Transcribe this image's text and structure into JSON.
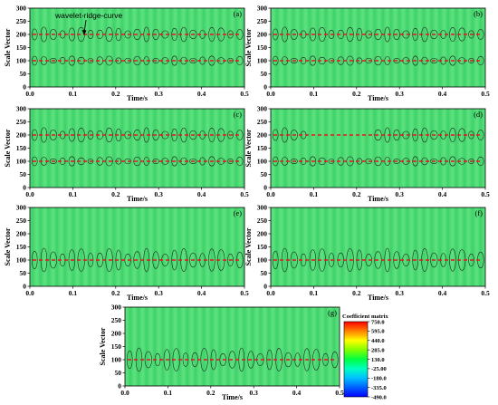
{
  "chart_data": {
    "type": "heatmap",
    "xlabel": "Time/s",
    "ylabel": "Scale Vector",
    "xlim": [
      0.0,
      0.5
    ],
    "ylim": [
      0,
      300
    ],
    "x_ticks": [
      "0.0",
      "0.1",
      "0.2",
      "0.3",
      "0.4",
      "0.5"
    ],
    "y_ticks": [
      "0",
      "50",
      "100",
      "150",
      "200",
      "250",
      "300"
    ],
    "annotation": "wavelet-ridge-curve",
    "colorbar": {
      "title": "Coefficient matrix",
      "ticks": [
        "750.0",
        "595.0",
        "440.0",
        "285.0",
        "130.0",
        "-25.00",
        "-180.0",
        "-335.0",
        "-490.0"
      ],
      "colors": [
        "#ff0000",
        "#ff8000",
        "#ffff00",
        "#80ff00",
        "#00ff40",
        "#00ffc0",
        "#00c0ff",
        "#0060ff",
        "#0000ff"
      ]
    },
    "panels": [
      {
        "label": "(a)",
        "ridges": [
          200,
          100
        ]
      },
      {
        "label": "(b)",
        "ridges": [
          200,
          100
        ]
      },
      {
        "label": "(c)",
        "ridges": [
          200,
          100
        ]
      },
      {
        "label": "(d)",
        "ridges": [
          200,
          100
        ]
      },
      {
        "label": "(e)",
        "ridges": [
          100
        ]
      },
      {
        "label": "(f)",
        "ridges": [
          100
        ]
      },
      {
        "label": "(g)",
        "ridges": [
          100
        ]
      }
    ]
  }
}
